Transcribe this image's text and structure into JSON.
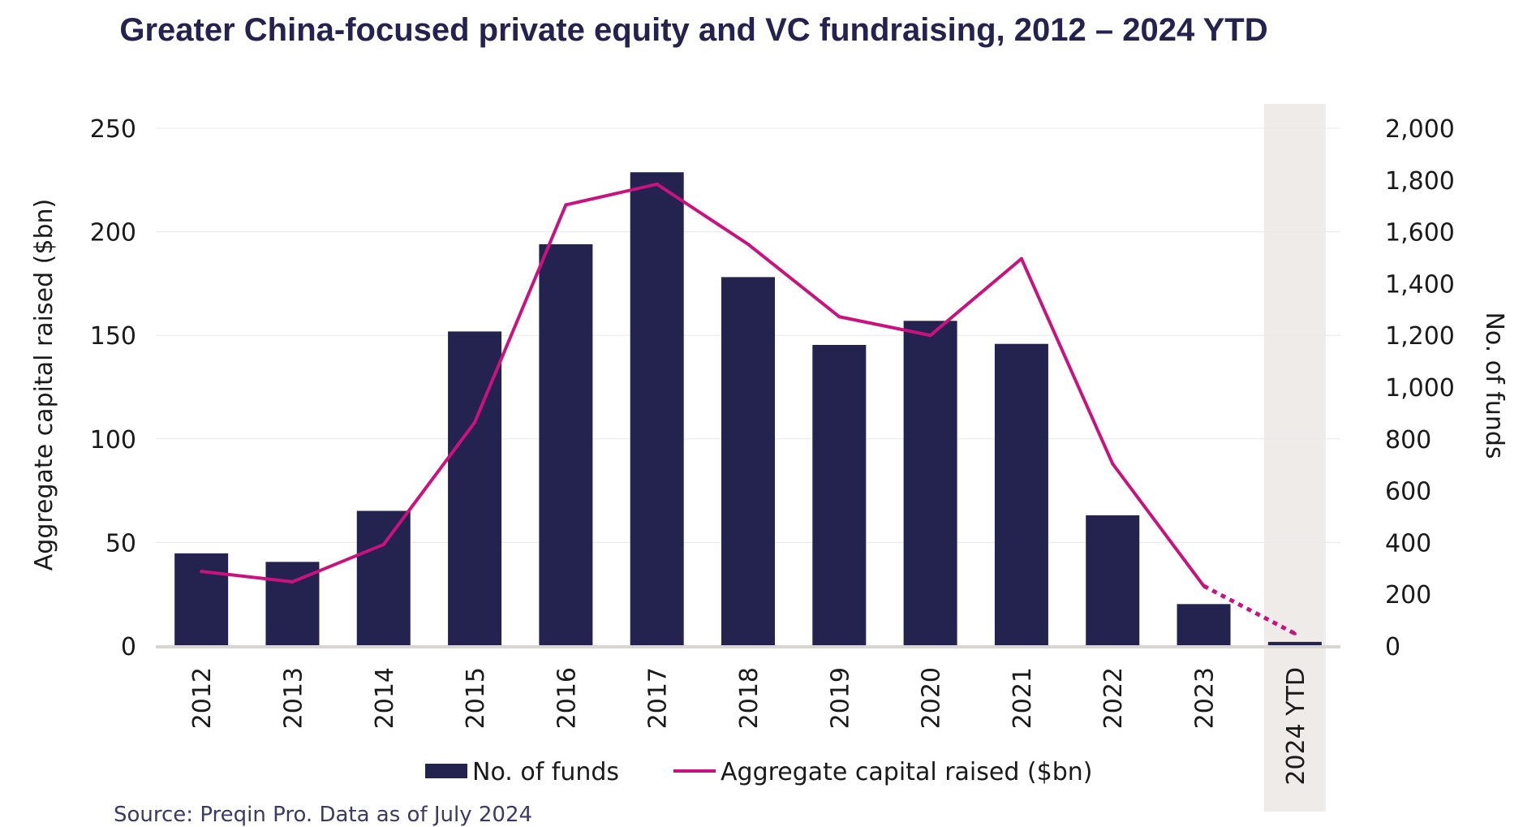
{
  "chart_data": {
    "type": "bar",
    "title": "Greater China-focused private equity and VC fundraising, 2012 – 2024 YTD",
    "categories": [
      "2012",
      "2013",
      "2014",
      "2015",
      "2016",
      "2017",
      "2018",
      "2019",
      "2020",
      "2021",
      "2022",
      "2023",
      "2024 YTD"
    ],
    "ylabel": "Aggregate capital raised ($bn)",
    "y2label": "No. of funds",
    "ylim": [
      0,
      250
    ],
    "y2lim": [
      0,
      2000
    ],
    "yticks": [
      "0",
      "50",
      "100",
      "150",
      "200",
      "250"
    ],
    "y2ticks": [
      "0",
      "200",
      "400",
      "600",
      "800",
      "1,000",
      "1,200",
      "1,400",
      "1,600",
      "1,800",
      "2,000"
    ],
    "grid": true,
    "highlight_category": "2024 YTD",
    "series": [
      {
        "name": "No. of funds",
        "kind": "bar",
        "axis": "right",
        "color": "#24224e",
        "values": [
          358,
          325,
          522,
          1215,
          1552,
          1830,
          1425,
          1163,
          1256,
          1167,
          505,
          162,
          16
        ]
      },
      {
        "name": "Aggregate capital raised ($bn)",
        "kind": "line",
        "axis": "left",
        "color": "#c8137e",
        "values": [
          36,
          31,
          49,
          108,
          213,
          223,
          194,
          159,
          150,
          187,
          88,
          29,
          6
        ],
        "dashed_from_category": "2023"
      }
    ]
  },
  "source": "Source: Preqin Pro. Data as of July 2024"
}
